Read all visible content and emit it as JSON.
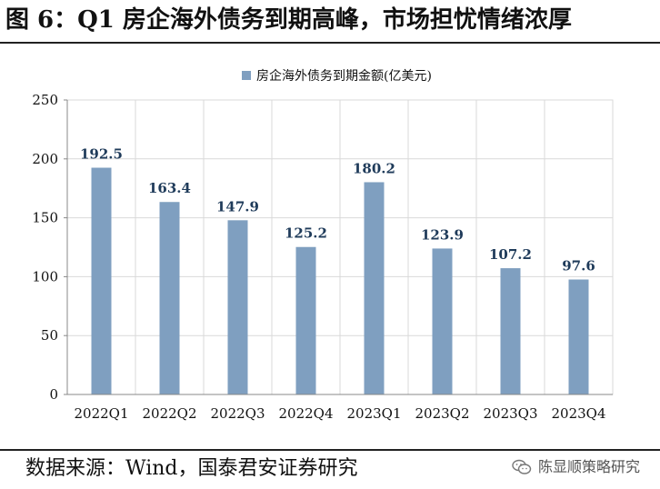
{
  "title": "图 6：Q1 房企海外债务到期高峰，市场担忧情绪浓厚",
  "source": "数据来源：Wind，国泰君安证券研究",
  "watermark": {
    "icon": "wechat-icon",
    "text": "陈显顺策略研究"
  },
  "colors": {
    "bar": "#7f9fc0",
    "grid": "#d9d9d9",
    "axis": "#888888",
    "text": "#111111",
    "label": "#1f3b5a"
  },
  "chart_data": {
    "type": "bar",
    "title": "",
    "legend": [
      "房企海外债务到期金额(亿美元)"
    ],
    "legend_position": "top",
    "categories": [
      "2022Q1",
      "2022Q2",
      "2022Q3",
      "2022Q4",
      "2023Q1",
      "2023Q2",
      "2023Q3",
      "2023Q4"
    ],
    "series": [
      {
        "name": "房企海外债务到期金额(亿美元)",
        "values": [
          192.5,
          163.4,
          147.9,
          125.2,
          180.2,
          123.9,
          107.2,
          97.6
        ]
      }
    ],
    "value_labels": [
      "192.5",
      "163.4",
      "147.9",
      "125.2",
      "180.2",
      "123.9",
      "107.2",
      "97.6"
    ],
    "ylim": [
      0,
      250
    ],
    "y_ticks": [
      0,
      50,
      100,
      150,
      200,
      250
    ],
    "y_tick_labels": [
      "0",
      "50",
      "100",
      "150",
      "200",
      "250"
    ],
    "grid": true,
    "xlabel": "",
    "ylabel": ""
  }
}
